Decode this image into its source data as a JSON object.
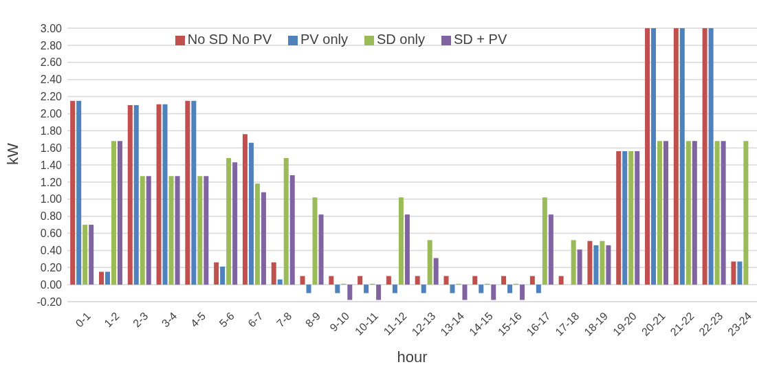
{
  "chart_data": {
    "type": "bar",
    "xlabel": "hour",
    "ylabel": "kW",
    "categories": [
      "0-1",
      "1-2",
      "2-3",
      "3-4",
      "4-5",
      "5-6",
      "6-7",
      "7-8",
      "8-9",
      "9-10",
      "10-11",
      "11-12",
      "12-13",
      "13-14",
      "14-15",
      "15-16",
      "16-17",
      "17-18",
      "18-19",
      "19-20",
      "20-21",
      "21-22",
      "22-23",
      "23-24"
    ],
    "series": [
      {
        "name": "No SD No PV",
        "color": "#c0504d",
        "values": [
          2.15,
          0.15,
          2.1,
          2.11,
          2.15,
          0.26,
          1.76,
          0.26,
          0.1,
          0.1,
          0.1,
          0.1,
          0.1,
          0.1,
          0.1,
          0.1,
          0.1,
          0.1,
          0.51,
          1.56,
          3.0,
          3.0,
          3.0,
          0.27
        ]
      },
      {
        "name": "PV only",
        "color": "#4f81bd",
        "values": [
          2.15,
          0.15,
          2.1,
          2.11,
          2.15,
          0.21,
          1.66,
          0.06,
          -0.1,
          -0.1,
          -0.1,
          -0.1,
          -0.1,
          -0.1,
          -0.1,
          -0.1,
          -0.1,
          0,
          0.46,
          1.56,
          3.0,
          3.0,
          3.0,
          0.27
        ]
      },
      {
        "name": "SD only",
        "color": "#9bbb59",
        "values": [
          0.7,
          1.68,
          1.27,
          1.27,
          1.27,
          1.48,
          1.18,
          1.48,
          1.02,
          0.01,
          0.01,
          1.02,
          0.52,
          0.01,
          0.01,
          0.01,
          1.02,
          0.52,
          0.51,
          1.56,
          1.68,
          1.68,
          1.68,
          1.68
        ]
      },
      {
        "name": "SD + PV",
        "color": "#8064a2",
        "values": [
          0.7,
          1.68,
          1.27,
          1.27,
          1.27,
          1.43,
          1.08,
          1.28,
          0.82,
          -0.18,
          -0.18,
          0.82,
          0.31,
          -0.18,
          -0.18,
          -0.18,
          0.82,
          0.41,
          0.46,
          1.56,
          1.68,
          1.68,
          1.68,
          null
        ]
      }
    ],
    "ylim": [
      -0.2,
      3.0
    ],
    "yticks": [
      {
        "value": -0.2,
        "label": "-0.20"
      },
      {
        "value": 0,
        "label": "0.00"
      },
      {
        "value": 0.2,
        "label": "0.20"
      },
      {
        "value": 0.4,
        "label": "0.40"
      },
      {
        "value": 0.6,
        "label": "0.60"
      },
      {
        "value": 0.8,
        "label": "0.80"
      },
      {
        "value": 1.0,
        "label": "1.00"
      },
      {
        "value": 1.2,
        "label": "1.20"
      },
      {
        "value": 1.4,
        "label": "1.40"
      },
      {
        "value": 1.6,
        "label": "1.60"
      },
      {
        "value": 1.8,
        "label": "1.80"
      },
      {
        "value": 2.0,
        "label": "2.00"
      },
      {
        "value": 2.2,
        "label": "2.20"
      },
      {
        "value": 2.4,
        "label": "2.40"
      },
      {
        "value": 2.6,
        "label": "2.60"
      },
      {
        "value": 2.8,
        "label": "2.80"
      },
      {
        "value": 3.0,
        "label": "3.00"
      }
    ],
    "grid": "y",
    "legend": "top"
  }
}
